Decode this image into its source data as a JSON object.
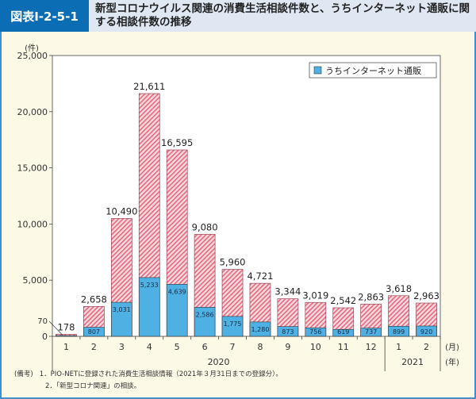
{
  "header": {
    "figure_no": "図表Ⅰ-2-5-1",
    "title": "新型コロナウイルス関連の消費生活相談件数と、うちインターネット通販に関する相談件数の推移"
  },
  "chart_data": {
    "type": "bar",
    "stacked": "overlay",
    "categories": [
      "1",
      "2",
      "3",
      "4",
      "5",
      "6",
      "7",
      "8",
      "9",
      "10",
      "11",
      "12",
      "1",
      "2"
    ],
    "years": [
      {
        "label": "2020",
        "months": 12
      },
      {
        "label": "2021",
        "months": 2
      }
    ],
    "series": [
      {
        "name": "",
        "values": [
          178,
          2658,
          10490,
          21611,
          16595,
          9080,
          5960,
          4721,
          3344,
          3019,
          2542,
          2863,
          3618,
          2963
        ],
        "color": "#f7c6cf",
        "hatch": "#e4697f"
      },
      {
        "name": "うちインターネット通販",
        "values": [
          70,
          807,
          3031,
          5233,
          4639,
          2586,
          1775,
          1280,
          873,
          756,
          619,
          737,
          899,
          920
        ],
        "color": "#4fb1e3"
      }
    ],
    "total_labels": [
      "178",
      "2,658",
      "10,490",
      "21,611",
      "16,595",
      "9,080",
      "5,960",
      "4,721",
      "3,344",
      "3,019",
      "2,542",
      "2,863",
      "3,618",
      "2,963"
    ],
    "inner_labels": [
      "70",
      "807",
      "3,031",
      "5,233",
      "4,639",
      "2,586",
      "1,775",
      "1,280",
      "873",
      "756",
      "619",
      "737",
      "899",
      "920"
    ],
    "ylabel": "(件)",
    "xunit_month": "(月)",
    "xunit_year": "(年)",
    "ylim": [
      0,
      25000
    ],
    "yticks": [
      "0",
      "5,000",
      "10,000",
      "15,000",
      "20,000",
      "25,000"
    ],
    "ytick_values": [
      0,
      5000,
      10000,
      15000,
      20000,
      25000
    ],
    "legend": {
      "label": "うちインターネット通販",
      "placement": "top-right"
    },
    "grid": false
  },
  "notes": {
    "head": "(備考)",
    "items": [
      "1．PIO-NETに登録された消費生活相談情報（2021年３月31日までの登録分）。",
      "2．「新型コロナ関連」の相談。"
    ]
  }
}
